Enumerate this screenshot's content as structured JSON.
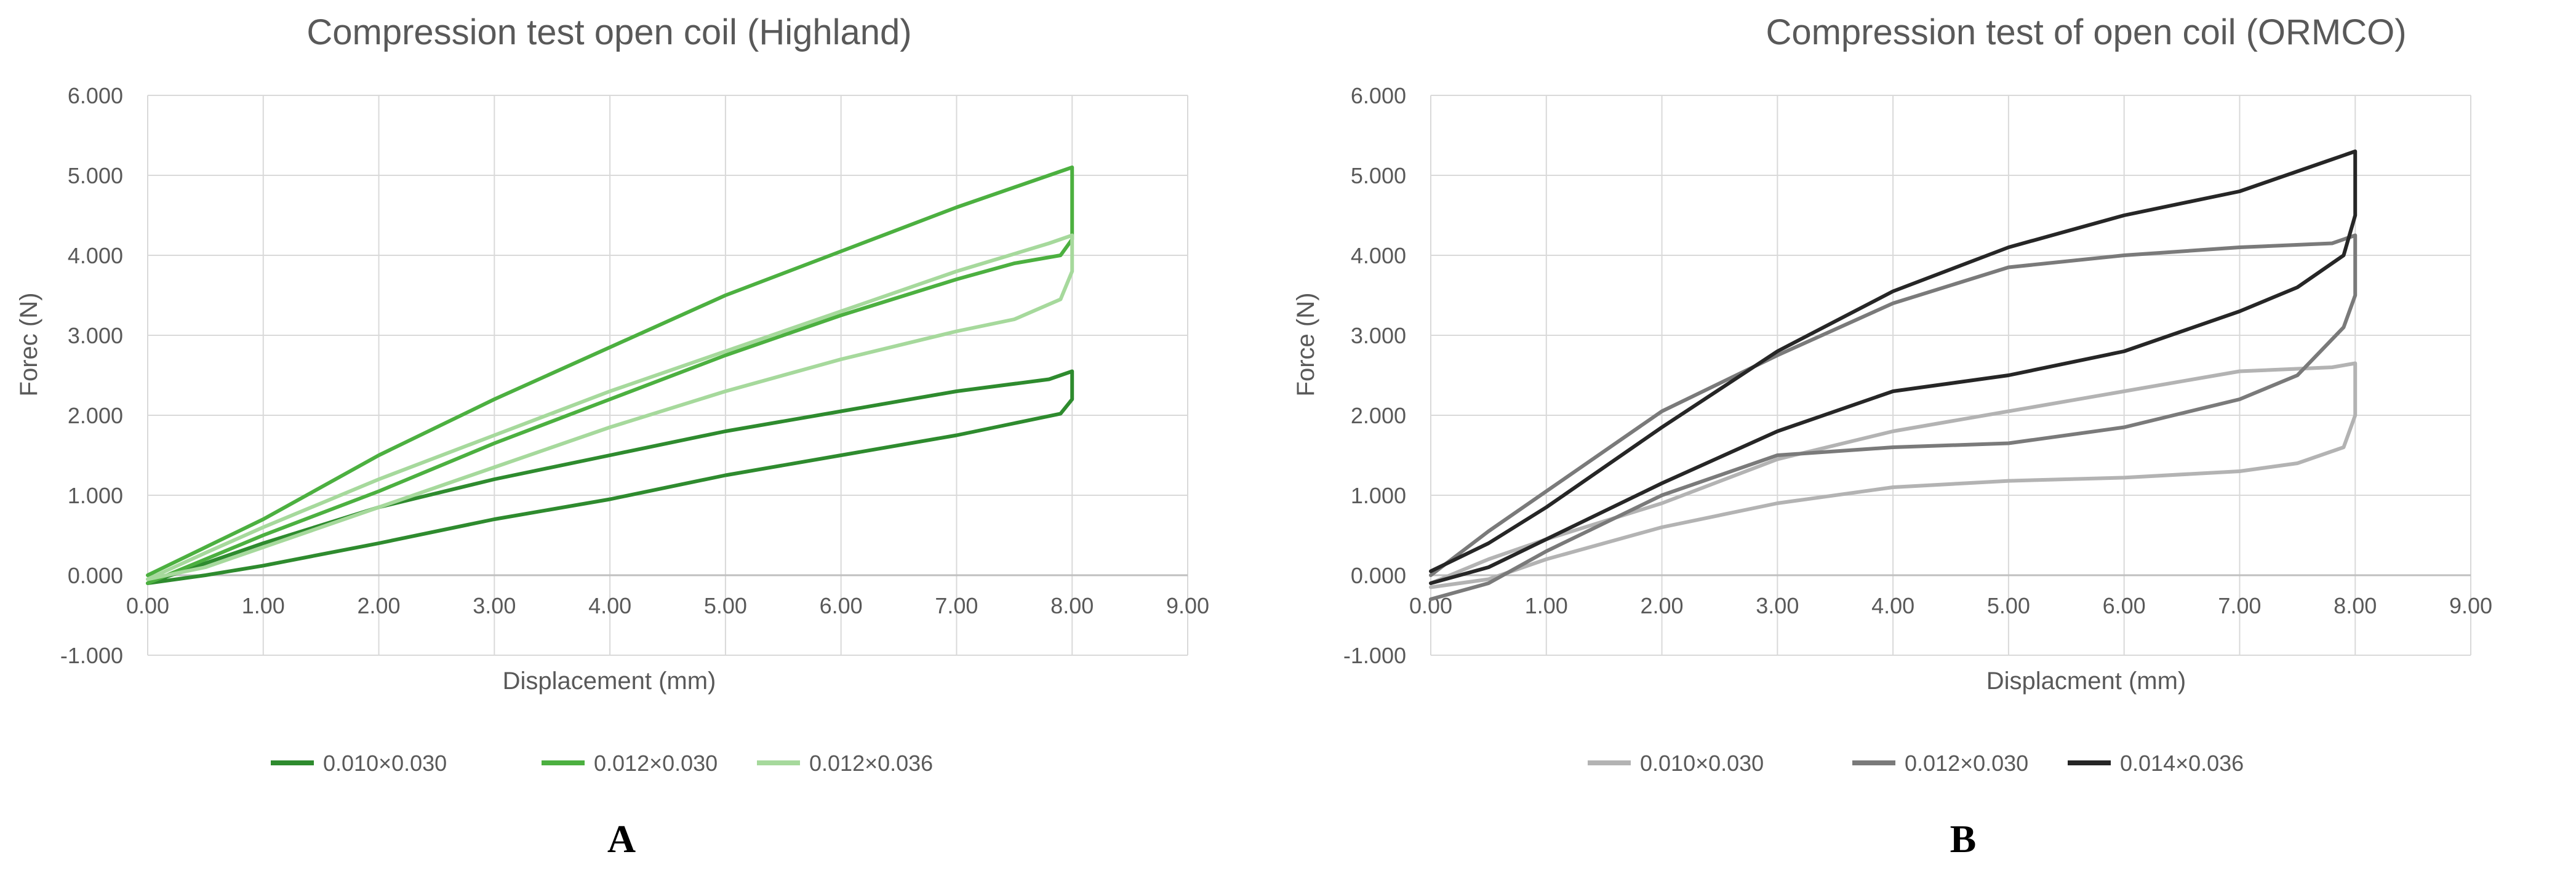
{
  "chart_data": [
    {
      "type": "line",
      "panel_label": "A",
      "title": "Compression test open coil (Highland)",
      "xlabel": "Displacement (mm)",
      "ylabel": "Forec (N)",
      "xlim": [
        0,
        9
      ],
      "ylim": [
        -1,
        6
      ],
      "xticks": [
        "0.00",
        "1.00",
        "2.00",
        "3.00",
        "4.00",
        "5.00",
        "6.00",
        "7.00",
        "8.00",
        "9.00"
      ],
      "yticks": [
        "-1.000",
        "0.000",
        "1.000",
        "2.000",
        "3.000",
        "4.000",
        "5.000",
        "6.000"
      ],
      "grid": true,
      "legend_position": "bottom",
      "series": [
        {
          "name": "0.010×0.030",
          "color": "#2e8b2e",
          "x": [
            0,
            0.5,
            1,
            2,
            3,
            4,
            5,
            6,
            7,
            7.8,
            8,
            8,
            8,
            7.9,
            7.5,
            7,
            6,
            5,
            4,
            3,
            2,
            1,
            0.5,
            0
          ],
          "y": [
            -0.1,
            0.15,
            0.4,
            0.85,
            1.2,
            1.5,
            1.8,
            2.05,
            2.3,
            2.45,
            2.55,
            2.4,
            2.2,
            2.02,
            1.9,
            1.75,
            1.5,
            1.25,
            0.95,
            0.7,
            0.4,
            0.12,
            0,
            -0.1
          ]
        },
        {
          "name": "0.012×0.030",
          "color": "#4cb040",
          "x": [
            0,
            0.5,
            1,
            2,
            3,
            4,
            5,
            6,
            7,
            7.8,
            8,
            8,
            8,
            7.9,
            7.5,
            7,
            6,
            5,
            4,
            3,
            2,
            1,
            0.5,
            0
          ],
          "y": [
            0,
            0.35,
            0.7,
            1.5,
            2.2,
            2.85,
            3.5,
            4.05,
            4.6,
            5.0,
            5.1,
            4.7,
            4.2,
            4.0,
            3.9,
            3.7,
            3.25,
            2.75,
            2.2,
            1.65,
            1.05,
            0.5,
            0.2,
            -0.1
          ]
        },
        {
          "name": "0.012×0.036",
          "color": "#a6d99c",
          "x": [
            0,
            0.5,
            1,
            2,
            3,
            4,
            5,
            6,
            7,
            7.8,
            8,
            8,
            8,
            7.9,
            7.5,
            7,
            6,
            5,
            4,
            3,
            2,
            1,
            0.5,
            0
          ],
          "y": [
            -0.05,
            0.28,
            0.6,
            1.2,
            1.75,
            2.3,
            2.8,
            3.3,
            3.8,
            4.15,
            4.25,
            4.05,
            3.8,
            3.45,
            3.2,
            3.05,
            2.7,
            2.3,
            1.85,
            1.35,
            0.85,
            0.35,
            0.1,
            -0.05
          ]
        }
      ]
    },
    {
      "type": "line",
      "panel_label": "B",
      "title": "Compression test of open coil (ORMCO)",
      "xlabel": "Displacment (mm)",
      "ylabel": "Force (N)",
      "xlim": [
        0,
        9
      ],
      "ylim": [
        -1,
        6
      ],
      "xticks": [
        "0.00",
        "1.00",
        "2.00",
        "3.00",
        "4.00",
        "5.00",
        "6.00",
        "7.00",
        "8.00",
        "9.00"
      ],
      "yticks": [
        "-1.000",
        "0.000",
        "1.000",
        "2.000",
        "3.000",
        "4.000",
        "5.000",
        "6.000"
      ],
      "grid": true,
      "legend_position": "bottom",
      "series": [
        {
          "name": "0.010×0.030",
          "color": "#b3b3b3",
          "x": [
            0,
            0.5,
            1,
            2,
            3,
            4,
            5,
            6,
            7,
            7.8,
            8,
            8,
            8,
            7.9,
            7.5,
            7,
            6,
            5,
            4,
            3,
            2,
            1,
            0.5,
            0
          ],
          "y": [
            -0.1,
            0.2,
            0.45,
            0.9,
            1.45,
            1.8,
            2.05,
            2.3,
            2.55,
            2.6,
            2.65,
            2.4,
            2.0,
            1.6,
            1.4,
            1.3,
            1.22,
            1.18,
            1.1,
            0.9,
            0.6,
            0.2,
            -0.05,
            -0.15
          ]
        },
        {
          "name": "0.012×0.030",
          "color": "#7a7a7a",
          "x": [
            0,
            0.5,
            1,
            2,
            3,
            4,
            5,
            6,
            7,
            7.8,
            8,
            8,
            8,
            7.9,
            7.5,
            7,
            6,
            5,
            4,
            3,
            2,
            1,
            0.5,
            0
          ],
          "y": [
            0,
            0.55,
            1.05,
            2.05,
            2.75,
            3.4,
            3.85,
            4.0,
            4.1,
            4.15,
            4.25,
            3.9,
            3.5,
            3.1,
            2.5,
            2.2,
            1.85,
            1.65,
            1.6,
            1.5,
            1.0,
            0.3,
            -0.1,
            -0.3
          ]
        },
        {
          "name": "0.014×0.036",
          "color": "#262626",
          "x": [
            0,
            0.5,
            1,
            2,
            3,
            4,
            5,
            6,
            7,
            7.8,
            8,
            8,
            8,
            7.9,
            7.5,
            7,
            6,
            5,
            4,
            3,
            2,
            1,
            0.5,
            0
          ],
          "y": [
            0.05,
            0.4,
            0.85,
            1.85,
            2.8,
            3.55,
            4.1,
            4.5,
            4.8,
            5.2,
            5.3,
            5.0,
            4.5,
            4.0,
            3.6,
            3.3,
            2.8,
            2.5,
            2.3,
            1.8,
            1.15,
            0.45,
            0.1,
            -0.1
          ]
        }
      ]
    }
  ]
}
